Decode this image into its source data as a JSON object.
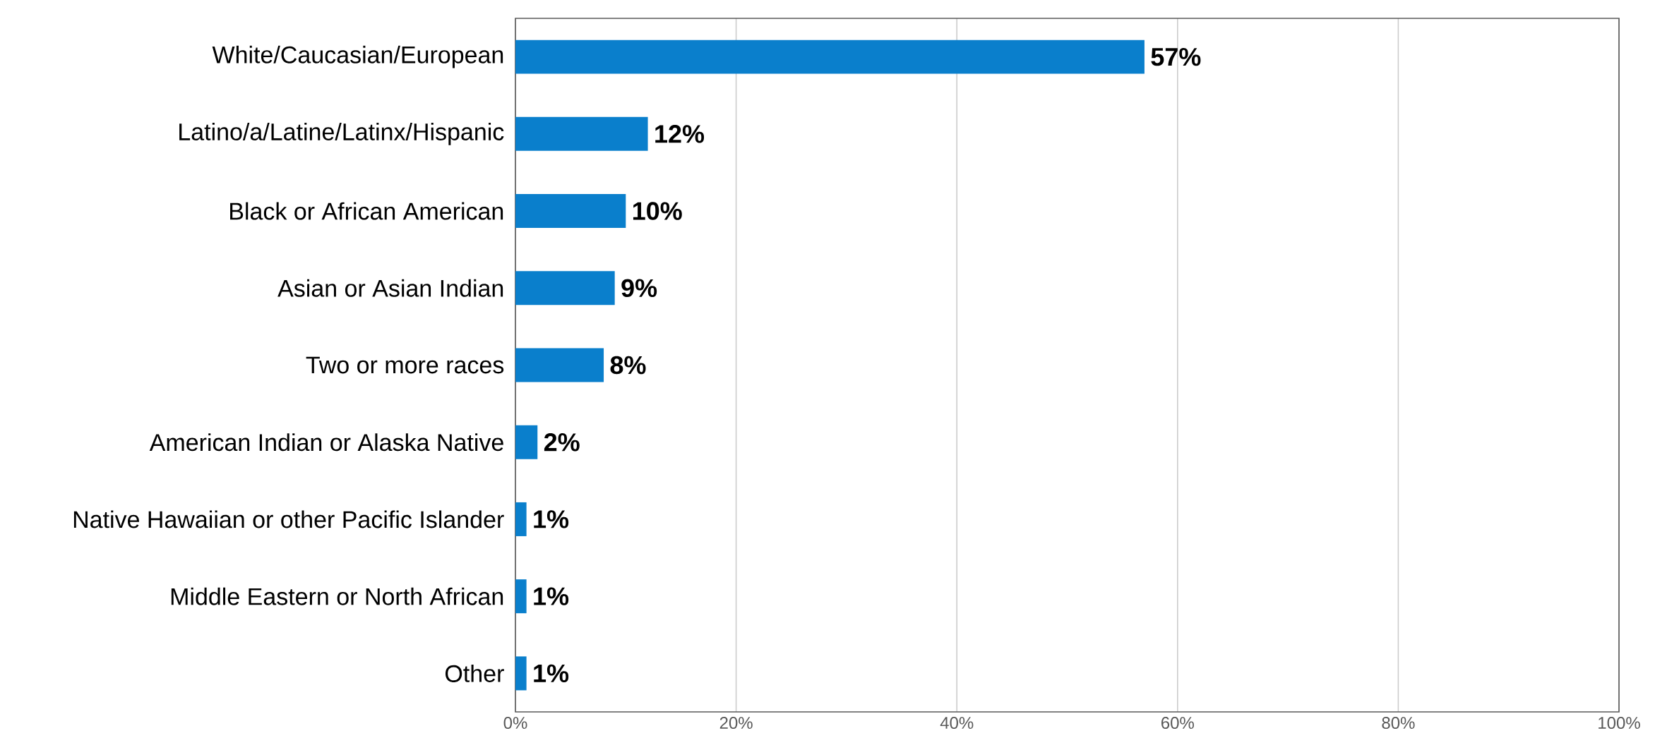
{
  "chart_data": {
    "type": "bar",
    "orientation": "horizontal",
    "categories": [
      "White/Caucasian/European",
      "Latino/a/Latine/Latinx/Hispanic",
      "Black or African American",
      "Asian or Asian Indian",
      "Two or more races",
      "American Indian or Alaska Native",
      "Native Hawaiian or other Pacific Islander",
      "Middle Eastern or North African",
      "Other"
    ],
    "values": [
      57,
      12,
      10,
      9,
      8,
      2,
      1,
      1,
      1
    ],
    "value_labels": [
      "57%",
      "12%",
      "10%",
      "9%",
      "8%",
      "2%",
      "1%",
      "1%",
      "1%"
    ],
    "color": "#0a7fcc",
    "xlim": [
      0,
      100
    ],
    "xticks": [
      {
        "value": 0,
        "label": "0%"
      },
      {
        "value": 20,
        "label": "20%"
      },
      {
        "value": 40,
        "label": "40%"
      },
      {
        "value": 60,
        "label": "60%"
      },
      {
        "value": 80,
        "label": "80%"
      },
      {
        "value": 100,
        "label": "100%"
      }
    ],
    "grid": "x"
  }
}
